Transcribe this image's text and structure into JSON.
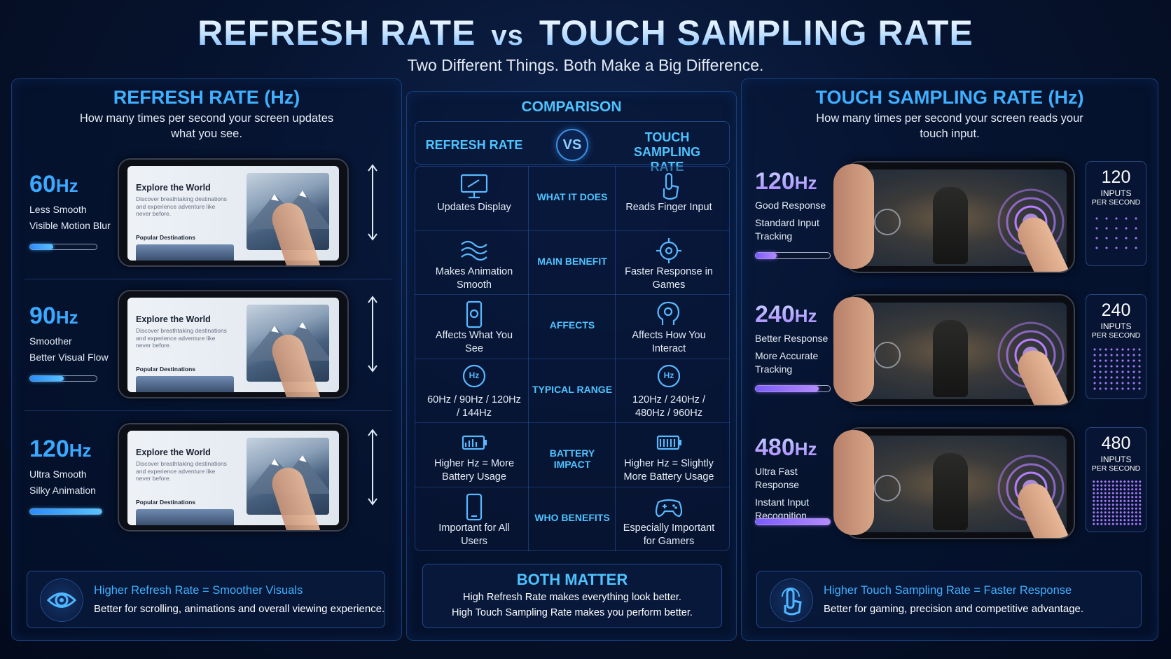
{
  "header": {
    "title": [
      "REFRESH RATE",
      "vs",
      "TOUCH SAMPLING RATE"
    ],
    "subtitle": "Two Different Things. Both Make a Big Difference."
  },
  "refresh_panel": {
    "title": "REFRESH RATE (Hz)",
    "description": "How many times per second your screen updates what you see.",
    "phone_screen": {
      "heading": "Explore the World",
      "text": "Discover breathtaking destinations and experience adventure like never before.",
      "section": "Popular Destinations"
    },
    "rows": [
      {
        "rate": "60",
        "unit": "Hz",
        "lines": [
          "Less Smooth",
          "Visible Motion Blur"
        ]
      },
      {
        "rate": "90",
        "unit": "Hz",
        "lines": [
          "Smoother",
          "Better Visual Flow"
        ]
      },
      {
        "rate": "120",
        "unit": "Hz",
        "lines": [
          "Ultra Smooth",
          "Silky Animation"
        ]
      }
    ],
    "footer": {
      "title": "Higher Refresh Rate = Smoother Visuals",
      "text": "Better for scrolling, animations and overall viewing experience."
    }
  },
  "comparison": {
    "title": "COMPARISON",
    "headers": [
      "REFRESH RATE",
      "VS",
      "TOUCH SAMPLING RATE"
    ],
    "icon_text": "Hz",
    "rows": [
      {
        "label": "WHAT IT DOES",
        "refresh": "Updates Display",
        "touch": "Reads Finger Input"
      },
      {
        "label": "MAIN BENEFIT",
        "refresh": "Makes Animation Smooth",
        "touch": "Faster Response in Games"
      },
      {
        "label": "AFFECTS",
        "refresh": "Affects What You See",
        "touch": "Affects How You Interact"
      },
      {
        "label": "TYPICAL RANGE",
        "refresh": "60Hz / 90Hz / 120Hz / 144Hz",
        "touch": "120Hz / 240Hz / 480Hz / 960Hz"
      },
      {
        "label": "BATTERY IMPACT",
        "refresh": "Higher Hz = More Battery Usage",
        "touch": "Higher Hz = Slightly More Battery Usage"
      },
      {
        "label": "WHO BENEFITS",
        "refresh": "Important for All Users",
        "touch": "Especially Important for Gamers"
      }
    ],
    "both_matter": {
      "title": "BOTH MATTER",
      "lines": [
        "High Refresh Rate makes everything look better.",
        "High Touch Sampling Rate makes you perform better."
      ]
    }
  },
  "touch_panel": {
    "title": "TOUCH SAMPLING RATE (Hz)",
    "description": "How many times per second your screen reads your touch input.",
    "inputs_unit": [
      "INPUTS",
      "PER SECOND"
    ],
    "rows": [
      {
        "rate": "120",
        "unit": "Hz",
        "lines": [
          "Good Response",
          "Standard Input Tracking"
        ],
        "inputs": "120"
      },
      {
        "rate": "240",
        "unit": "Hz",
        "lines": [
          "Better Response",
          "More Accurate Tracking"
        ],
        "inputs": "240"
      },
      {
        "rate": "480",
        "unit": "Hz",
        "lines": [
          "Ultra Fast Response",
          "Instant Input Recognition"
        ],
        "inputs": "480"
      }
    ],
    "footer": {
      "title": "Higher Touch Sampling Rate = Faster Response",
      "text": "Better for gaming, precision and competitive advantage."
    }
  }
}
